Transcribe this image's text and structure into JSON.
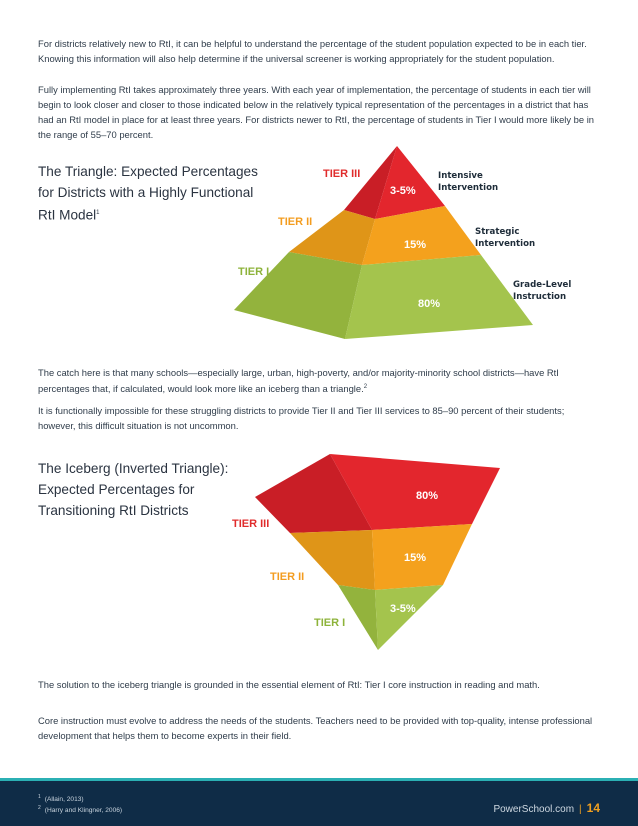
{
  "intro": {
    "p1": "For districts relatively new to RtI, it can be helpful to understand the percentage of the student population expected to be in each tier. Knowing this information will also help determine if the universal screener is working appropriately for the student population.",
    "p2": "Fully implementing RtI takes approximately three years. With each year of implementation, the percentage of students in each tier will begin to look closer and closer to those indicated below in the relatively typical representation of the percentages in a district that has had an RtI model in place for at least three years. For districts newer to RtI, the percentage of students in Tier I would more likely be in the range of 55–70 percent."
  },
  "triangle": {
    "heading": "The Triangle: Expected Percentages for Districts with a Highly Functional RtI Model",
    "footnote_ref": "1",
    "tiers": [
      {
        "label": "TIER III",
        "pct": "3-5%",
        "side": [
          "Intensive",
          "Intervention"
        ]
      },
      {
        "label": "TIER II",
        "pct": "15%",
        "side": [
          "Strategic",
          "Intervention"
        ]
      },
      {
        "label": "TIER I",
        "pct": "80%",
        "side": [
          "Grade-Level",
          "Instruction"
        ]
      }
    ]
  },
  "middle": {
    "p1": "The catch here is that many schools—especially large, urban, high-poverty, and/or majority-minority school districts—have RtI percentages that, if calculated, would look more like an iceberg than a triangle.",
    "p1_ref": "2",
    "p2": "It is functionally impossible for these struggling districts to provide Tier II and Tier III services to 85–90 percent of their students; however, this difficult situation is not uncommon."
  },
  "iceberg": {
    "heading": "The Iceberg (Inverted Triangle): Expected Percentages for Transitioning RtI Districts",
    "tiers": [
      {
        "label": "TIER III",
        "pct": "80%"
      },
      {
        "label": "TIER II",
        "pct": "15%"
      },
      {
        "label": "TIER I",
        "pct": "3-5%"
      }
    ]
  },
  "closing": {
    "p1": "The solution to the iceberg triangle is grounded in the essential element of RtI: Tier I core instruction in reading and math.",
    "p2": "Core instruction must evolve to address the needs of the students. Teachers need to be provided with top-quality, intense professional development that helps them to become experts in their field."
  },
  "footer": {
    "footnotes": [
      {
        "num": "1",
        "text": "(Allain, 2013)"
      },
      {
        "num": "2",
        "text": "(Harry and Klingner, 2006)"
      }
    ],
    "brand": "PowerSchool.com",
    "separator": "|",
    "page": "14"
  },
  "colors": {
    "tier3_red": "#e3262d",
    "tier2_orange": "#f4a11d",
    "tier1_green": "#a4c44d",
    "tier3_label": "#e02c2c",
    "tier2_label": "#f39c1f",
    "tier1_label": "#8db33a",
    "footer_navy": "#0f2c47"
  }
}
